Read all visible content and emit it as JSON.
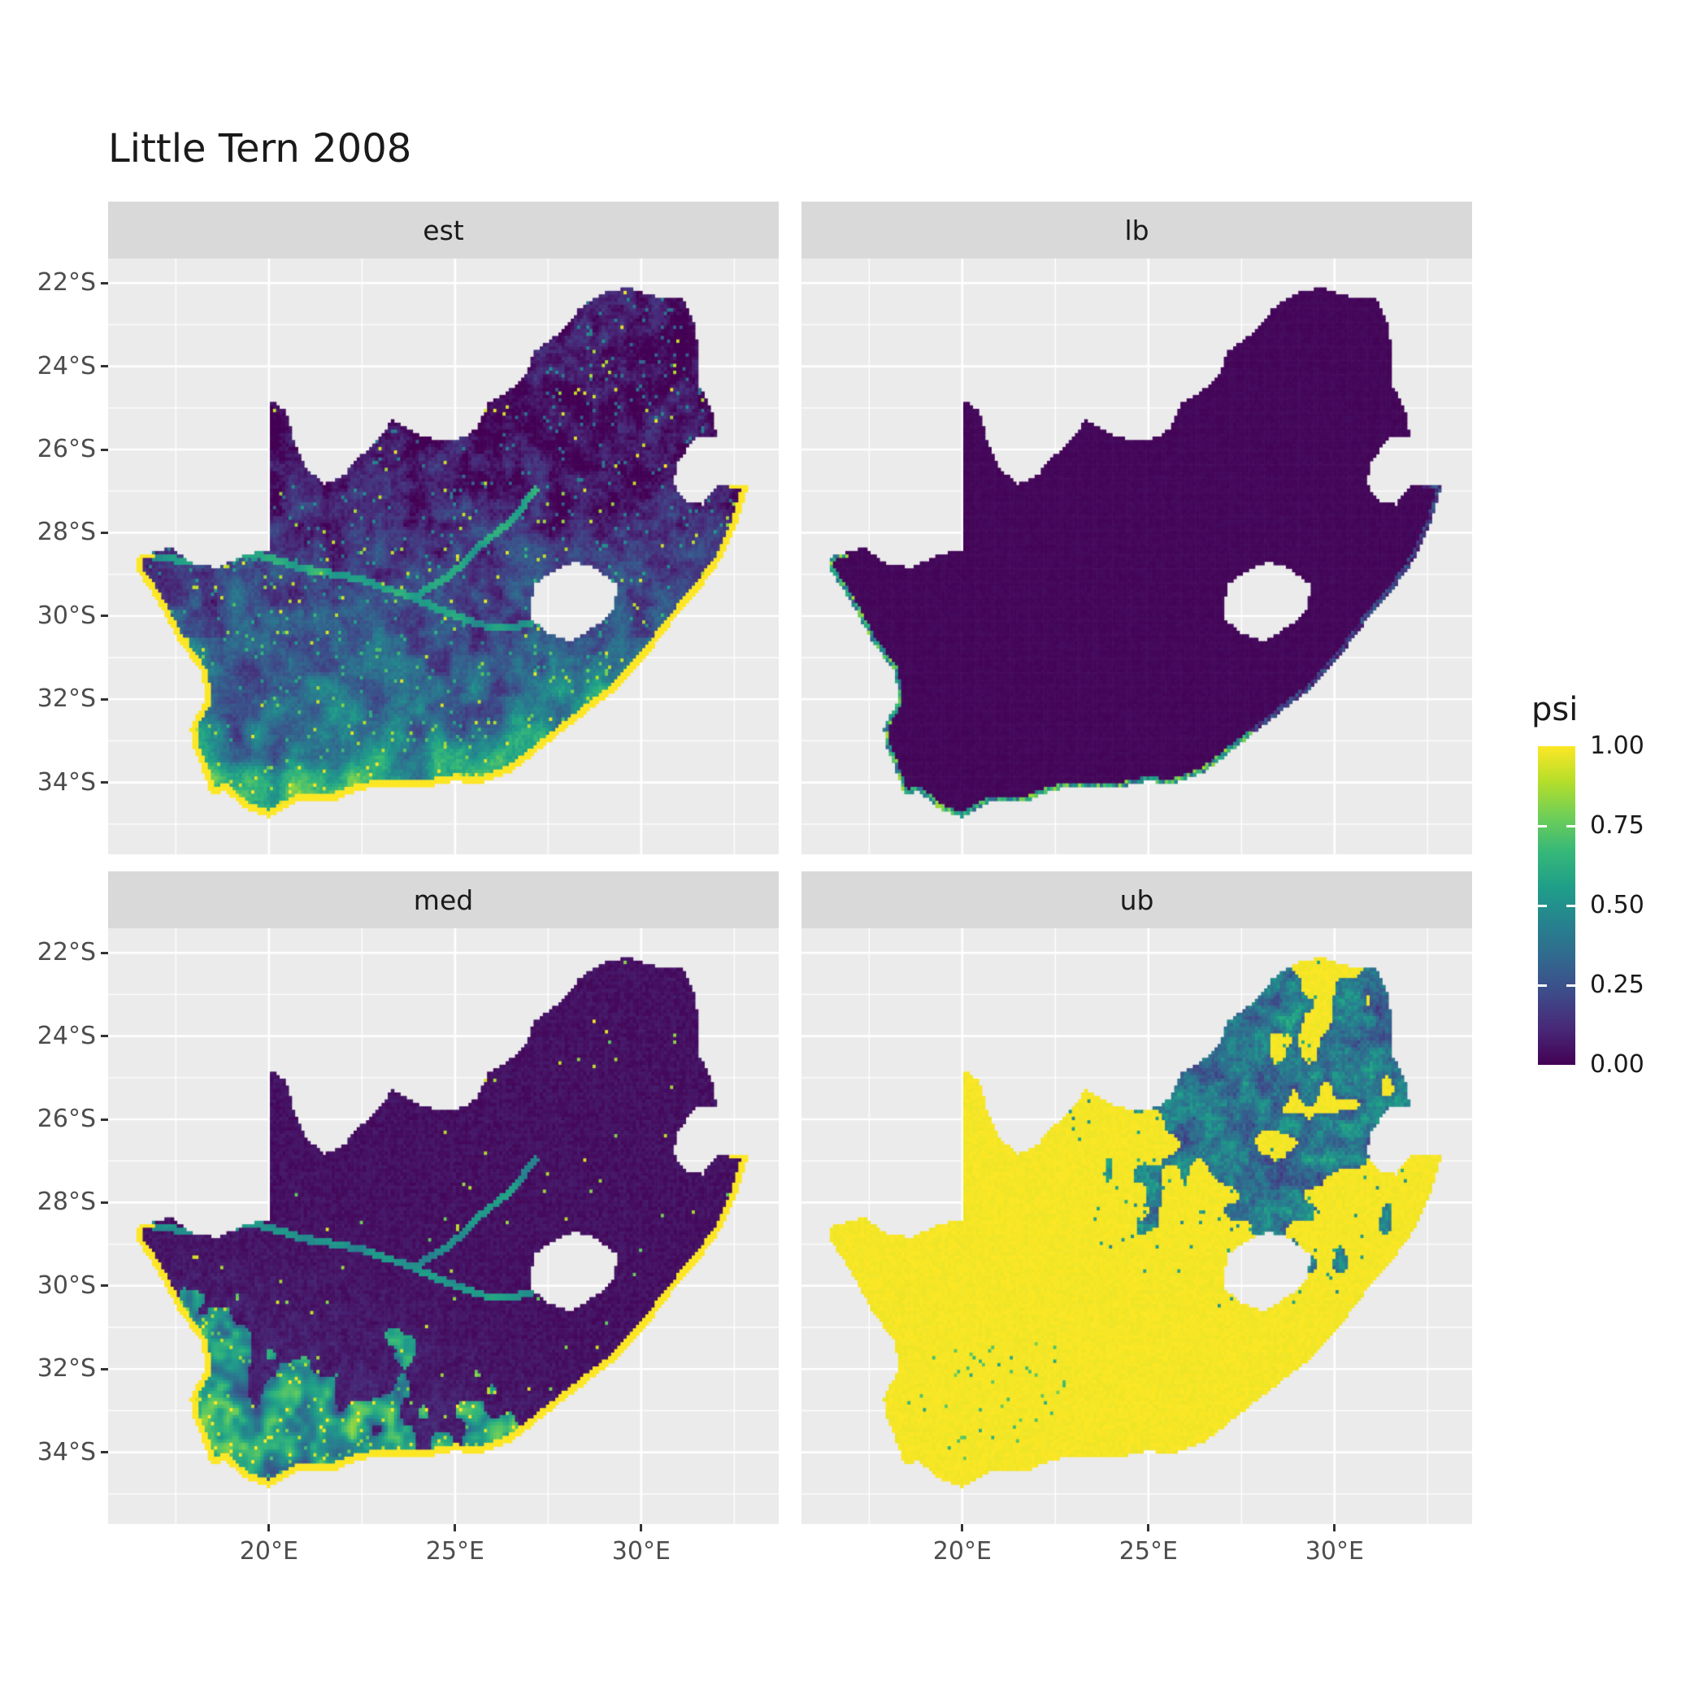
{
  "title": "Little Tern 2008",
  "facets": [
    {
      "key": "est",
      "label": "est"
    },
    {
      "key": "lb",
      "label": "lb"
    },
    {
      "key": "med",
      "label": "med"
    },
    {
      "key": "ub",
      "label": "ub"
    }
  ],
  "axes": {
    "x": {
      "ticks": [
        {
          "value": 20,
          "label": "20°E"
        },
        {
          "value": 25,
          "label": "25°E"
        },
        {
          "value": 30,
          "label": "30°E"
        }
      ]
    },
    "y": {
      "ticks": [
        {
          "value": -22,
          "label": "22°S"
        },
        {
          "value": -24,
          "label": "24°S"
        },
        {
          "value": -26,
          "label": "26°S"
        },
        {
          "value": -28,
          "label": "28°S"
        },
        {
          "value": -30,
          "label": "30°S"
        },
        {
          "value": -32,
          "label": "32°S"
        },
        {
          "value": -34,
          "label": "34°S"
        }
      ]
    }
  },
  "legend": {
    "title": "psi",
    "labels": [
      {
        "value": 1.0,
        "label": "1.00"
      },
      {
        "value": 0.75,
        "label": "0.75"
      },
      {
        "value": 0.5,
        "label": "0.50"
      },
      {
        "value": 0.25,
        "label": "0.25"
      },
      {
        "value": 0.0,
        "label": "0.00"
      }
    ]
  },
  "colors": {
    "panel_bg": "#EBEBEB",
    "strip_bg": "#D9D9D9",
    "grid_major": "#FFFFFF",
    "grid_minor": "#FFFFFF",
    "axis_text": "#4D4D4D",
    "text": "#1A1A1A",
    "viridis": [
      "#440154",
      "#482878",
      "#3E4A89",
      "#31688E",
      "#26828E",
      "#1F9E89",
      "#35B779",
      "#6ECE58",
      "#B5DE2B",
      "#FDE725"
    ]
  },
  "chart_data": {
    "type": "heatmap",
    "title": "Little Tern 2008",
    "region": "South Africa raster map (Lesotho and Eswatini shown as gaps), 2x2 facet grid",
    "variable": "psi",
    "facets": [
      "est",
      "lb",
      "med",
      "ub"
    ],
    "scale": {
      "palette": "viridis",
      "limits": [
        0,
        1
      ],
      "breaks": [
        0,
        0.25,
        0.5,
        0.75,
        1.0
      ],
      "legend_position": "right"
    },
    "x_axis": {
      "tick_labels": [
        "20°E",
        "25°E",
        "30°E"
      ],
      "approx_range_deg": [
        15.7,
        33.7
      ]
    },
    "y_axis": {
      "tick_labels": [
        "22°S",
        "24°S",
        "26°S",
        "28°S",
        "30°S",
        "32°S",
        "34°S"
      ],
      "approx_range_deg": [
        -35.7,
        -21.4
      ]
    },
    "facet_patterns": {
      "est": "Estimated occupancy: low 0-0.3 (dark purple/blue) across northern interior, moderate 0.3-0.7 (teal-green) speckled across southern half, solid 1.0 (yellow) fringe along the entire ocean coastline, teal river line across the interior",
      "lb": "Lower bound: approximately 0 (dark purple) over the whole country except a narrow 0.3-0.8 green/yellow fringe on the west and south coasts",
      "med": "Median: approximately 0 (dark purple) over most of the interior, patchy 0.3-0.9 teal/green/yellow values in the southwest and along the south coast, thin 1.0 yellow coastal fringe, scattered bright speckles",
      "ub": "Upper bound: approximately 1.0 (yellow) over western and southern regions and all coastal margins, large patchy region of 0.15-0.6 (dark blue/teal) across the northeastern interior"
    },
    "grid": "light grey panels with white major gridlines at labelled breaks"
  }
}
